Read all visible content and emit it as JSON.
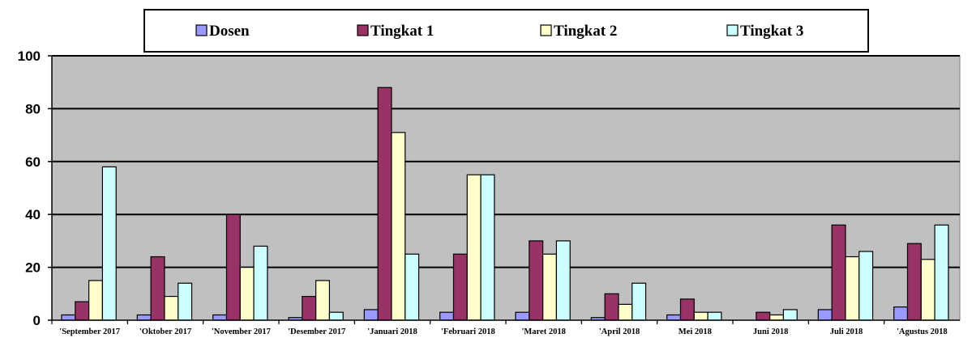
{
  "chart_data": {
    "type": "bar",
    "title": "",
    "xlabel": "",
    "ylabel": "",
    "ylim": [
      0,
      100
    ],
    "yticks": [
      0,
      20,
      40,
      60,
      80,
      100
    ],
    "grid": true,
    "legend_position": "top",
    "plot_background": "#c0c0c0",
    "categories": [
      "'September 2017",
      "'Oktober 2017",
      "'November 2017",
      "'Desember 2017",
      "'Januari 2018",
      "'Februari 2018",
      "'Maret 2018",
      "'April 2018",
      "Mei 2018",
      "Juni 2018",
      "Juli 2018",
      "'Agustus 2018"
    ],
    "series": [
      {
        "name": "Dosen",
        "color": "#9999ff",
        "values": [
          2,
          2,
          2,
          1,
          4,
          3,
          3,
          1,
          2,
          0,
          4,
          5
        ]
      },
      {
        "name": "Tingkat 1",
        "color": "#993366",
        "values": [
          7,
          24,
          40,
          9,
          88,
          25,
          30,
          10,
          8,
          3,
          36,
          29
        ]
      },
      {
        "name": "Tingkat 2",
        "color": "#ffffcc",
        "values": [
          15,
          9,
          20,
          15,
          71,
          55,
          25,
          6,
          3,
          2,
          24,
          23
        ]
      },
      {
        "name": "Tingkat 3",
        "color": "#ccffff",
        "values": [
          58,
          14,
          28,
          3,
          25,
          55,
          30,
          14,
          3,
          4,
          26,
          36
        ]
      }
    ]
  }
}
